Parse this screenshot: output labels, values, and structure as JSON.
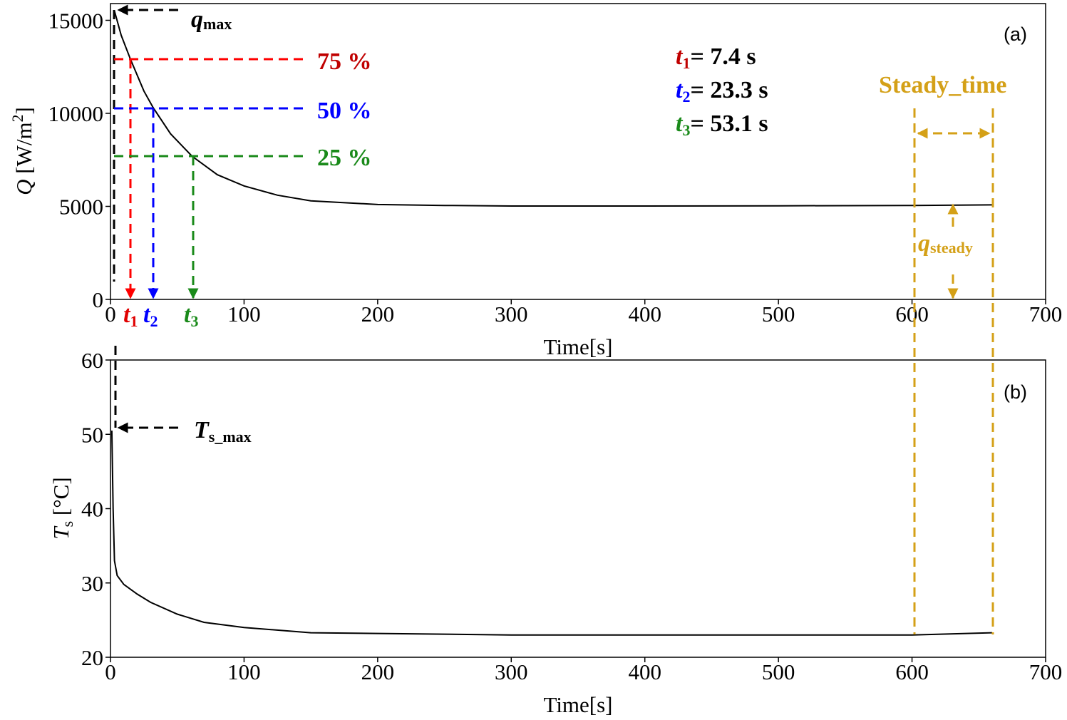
{
  "chart_data": [
    {
      "type": "line",
      "panel_label": "(a)",
      "xlabel": "Time[s]",
      "ylabel": {
        "symbol": "Q",
        "unit": " [W/m",
        "unit_sup": "2",
        "unit_end": "]"
      },
      "xlim": [
        0,
        700
      ],
      "xticks": [
        0,
        100,
        200,
        300,
        400,
        500,
        600,
        700
      ],
      "ylim": [
        0,
        15900
      ],
      "yticks": [
        0,
        5000,
        10000,
        15000
      ],
      "series": [
        {
          "color": "#000000",
          "x": [
            3,
            8,
            15,
            25,
            32,
            45,
            61,
            80,
            100,
            125,
            150,
            200,
            250,
            300,
            400,
            500,
            600,
            660
          ],
          "values": [
            15500,
            14200,
            12900,
            11200,
            10300,
            8900,
            7700,
            6700,
            6100,
            5600,
            5300,
            5100,
            5050,
            5020,
            5020,
            5030,
            5050,
            5080
          ]
        }
      ],
      "annotations": {
        "q_max": {
          "text": "q",
          "sub": "max"
        },
        "levels": [
          "75 %",
          "50 %",
          "25 %"
        ],
        "t_labels": [
          {
            "text": "t",
            "sub": "1"
          },
          {
            "text": "t",
            "sub": "2"
          },
          {
            "text": "t",
            "sub": "3"
          }
        ],
        "results": [
          {
            "text": "t",
            "sub": "1",
            "rest": "= 7.4 s"
          },
          {
            "text": "t",
            "sub": "2",
            "rest": "= 23.3 s"
          },
          {
            "text": "t",
            "sub": "3",
            "rest": "= 53.1 s"
          }
        ],
        "steady_time": "Steady_time",
        "q_steady": {
          "text": "q",
          "sub": "steady"
        }
      }
    },
    {
      "type": "line",
      "panel_label": "(b)",
      "xlabel": "Time[s]",
      "ylabel": {
        "symbol": "T",
        "sub": "s",
        "unit": " [°C]"
      },
      "xlim": [
        0,
        700
      ],
      "xticks": [
        0,
        100,
        200,
        300,
        400,
        500,
        600,
        700
      ],
      "ylim": [
        20,
        60
      ],
      "yticks": [
        20,
        30,
        40,
        50,
        60
      ],
      "series": [
        {
          "color": "#000000",
          "x": [
            1,
            2,
            3,
            5,
            10,
            20,
            30,
            50,
            70,
            100,
            150,
            200,
            300,
            400,
            500,
            600,
            660
          ],
          "values": [
            50.5,
            40,
            33,
            31,
            29.8,
            28.5,
            27.4,
            25.8,
            24.7,
            24,
            23.3,
            23.2,
            23,
            23,
            23,
            23,
            23.3
          ]
        }
      ],
      "annotations": {
        "ts_max": {
          "text": "T",
          "sub": "s_max"
        }
      }
    }
  ]
}
